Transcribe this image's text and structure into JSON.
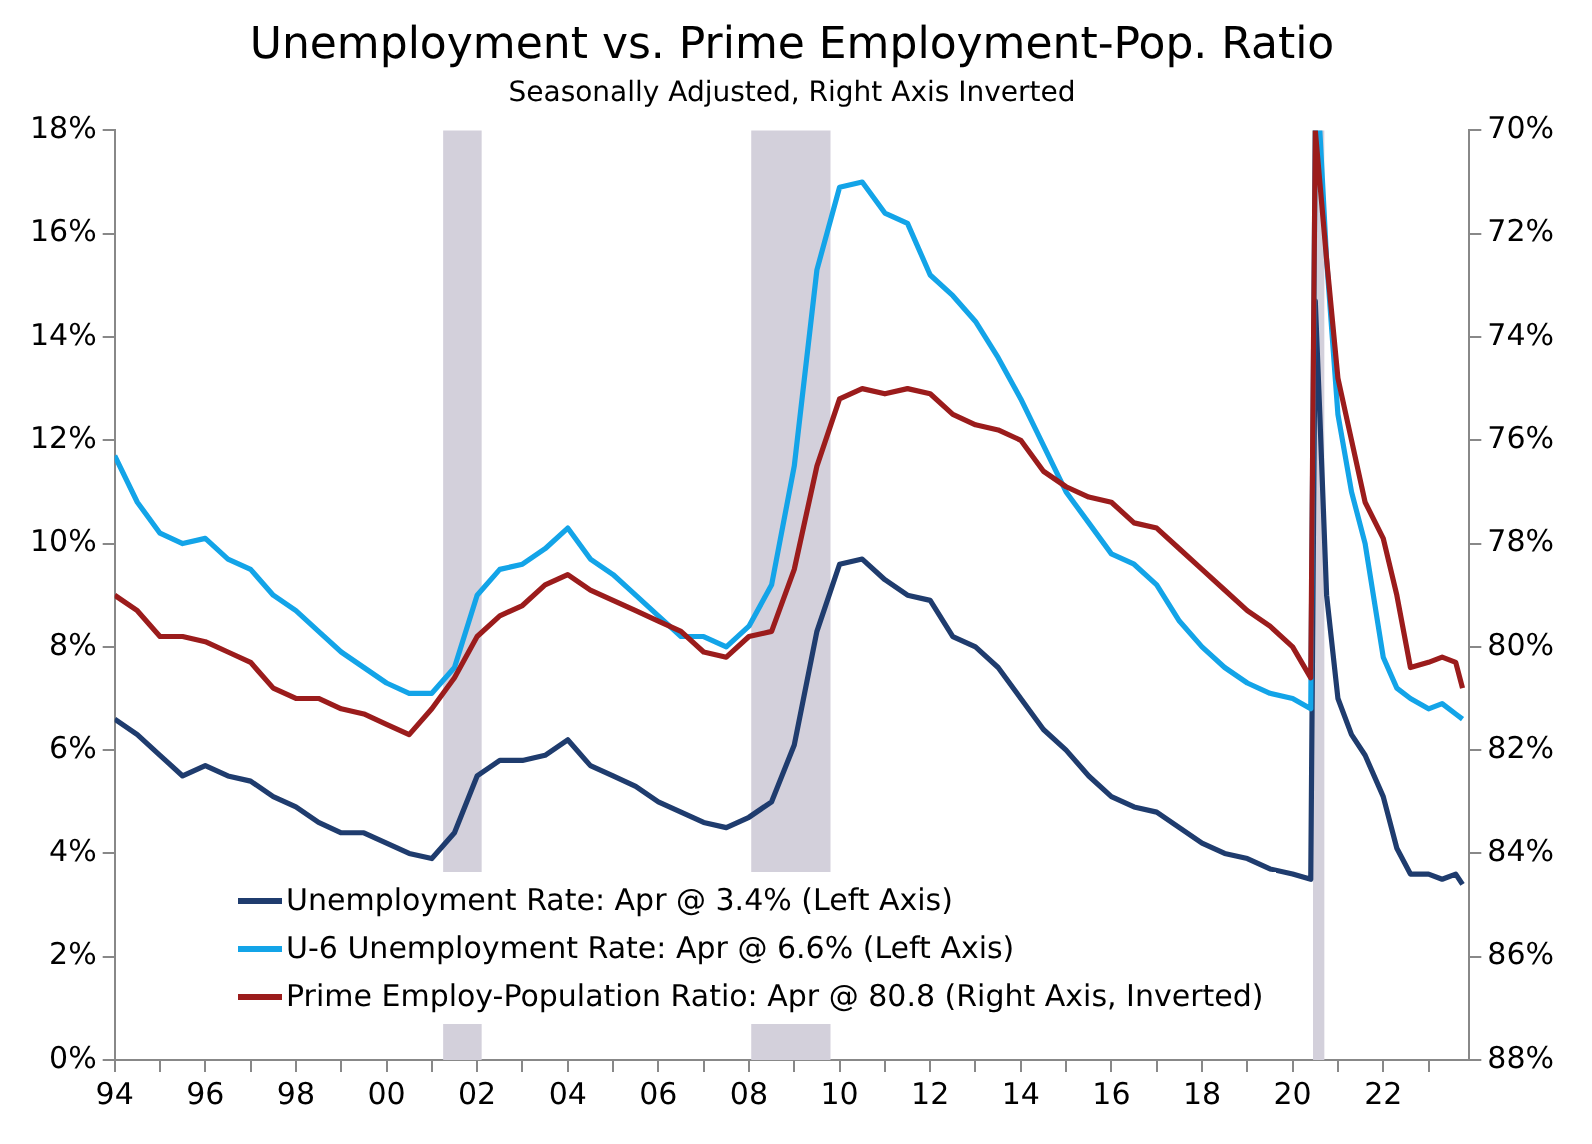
{
  "chart_data": {
    "type": "line",
    "title": "Unemployment vs. Prime Employment-Pop. Ratio",
    "subtitle": "Seasonally Adjusted, Right Axis Inverted",
    "x": [
      1994.0,
      1994.5,
      1995.0,
      1995.5,
      1996.0,
      1996.5,
      1997.0,
      1997.5,
      1998.0,
      1998.5,
      1999.0,
      1999.5,
      2000.0,
      2000.5,
      2001.0,
      2001.5,
      2002.0,
      2002.5,
      2003.0,
      2003.5,
      2004.0,
      2004.5,
      2005.0,
      2005.5,
      2006.0,
      2006.5,
      2007.0,
      2007.5,
      2008.0,
      2008.5,
      2009.0,
      2009.5,
      2010.0,
      2010.5,
      2011.0,
      2011.5,
      2012.0,
      2012.5,
      2013.0,
      2013.5,
      2014.0,
      2014.5,
      2015.0,
      2015.5,
      2016.0,
      2016.5,
      2017.0,
      2017.5,
      2018.0,
      2018.5,
      2019.0,
      2019.5,
      2020.0,
      2020.4,
      2020.5,
      2020.6,
      2020.75,
      2021.0,
      2021.3,
      2021.6,
      2022.0,
      2022.3,
      2022.6,
      2023.0,
      2023.3,
      2023.6,
      2023.75
    ],
    "series": [
      {
        "name": "Unemployment Rate: Apr @ 3.4% (Left Axis)",
        "color": "#1f3c6e",
        "values": [
          6.6,
          6.3,
          5.9,
          5.5,
          5.7,
          5.5,
          5.4,
          5.1,
          4.9,
          4.6,
          4.4,
          4.4,
          4.2,
          4.0,
          3.9,
          4.4,
          5.5,
          5.8,
          5.8,
          5.9,
          6.2,
          5.7,
          5.5,
          5.3,
          5.0,
          4.8,
          4.6,
          4.5,
          4.7,
          5.0,
          6.1,
          8.3,
          9.6,
          9.7,
          9.3,
          9.0,
          8.9,
          8.2,
          8.0,
          7.6,
          7.0,
          6.4,
          6.0,
          5.5,
          5.1,
          4.9,
          4.8,
          4.5,
          4.2,
          4.0,
          3.9,
          3.7,
          3.6,
          3.5,
          14.7,
          12.5,
          9.0,
          7.0,
          6.3,
          5.9,
          5.1,
          4.1,
          3.6,
          3.6,
          3.5,
          3.6,
          3.4
        ]
      },
      {
        "name": "U-6 Unemployment Rate: Apr @ 6.6% (Left Axis)",
        "color": "#13a4e8",
        "values": [
          11.7,
          10.8,
          10.2,
          10.0,
          10.1,
          9.7,
          9.5,
          9.0,
          8.7,
          8.3,
          7.9,
          7.6,
          7.3,
          7.1,
          7.1,
          7.6,
          9.0,
          9.5,
          9.6,
          9.9,
          10.3,
          9.7,
          9.4,
          9.0,
          8.6,
          8.2,
          8.2,
          8.0,
          8.4,
          9.2,
          11.5,
          15.3,
          16.9,
          17.0,
          16.4,
          16.2,
          15.2,
          14.8,
          14.3,
          13.6,
          12.8,
          11.9,
          11.0,
          10.4,
          9.8,
          9.6,
          9.2,
          8.5,
          8.0,
          7.6,
          7.3,
          7.1,
          7.0,
          6.8,
          18,
          18,
          15.5,
          12.5,
          11.0,
          10.0,
          7.8,
          7.2,
          7.0,
          6.8,
          6.9,
          6.7,
          6.6
        ]
      },
      {
        "name": "Prime Employ-Population Ratio: Apr @ 80.8 (Right Axis, Inverted)",
        "color": "#9b1c1c",
        "axis": "y2",
        "values": [
          79.0,
          79.3,
          79.8,
          79.8,
          79.9,
          80.1,
          80.3,
          80.8,
          81.0,
          81.0,
          81.2,
          81.3,
          81.5,
          81.7,
          81.2,
          80.6,
          79.8,
          79.4,
          79.2,
          78.8,
          78.6,
          78.9,
          79.1,
          79.3,
          79.5,
          79.7,
          80.1,
          80.2,
          79.8,
          79.7,
          78.5,
          76.5,
          75.2,
          75.0,
          75.1,
          75.0,
          75.1,
          75.5,
          75.7,
          75.8,
          76.0,
          76.6,
          76.9,
          77.1,
          77.2,
          77.6,
          77.7,
          78.1,
          78.5,
          78.9,
          79.3,
          79.6,
          80.0,
          80.6,
          70,
          71.0,
          72.5,
          74.8,
          76.0,
          77.2,
          77.9,
          79.0,
          80.4,
          80.3,
          80.2,
          80.3,
          80.8
        ]
      }
    ],
    "xlim": [
      1994,
      2023.9
    ],
    "xticks": [
      {
        "value": 1994,
        "label": "94"
      },
      {
        "value": 1995,
        "label": null
      },
      {
        "value": 1996,
        "label": "96"
      },
      {
        "value": 1997,
        "label": null
      },
      {
        "value": 1998,
        "label": "98"
      },
      {
        "value": 1999,
        "label": null
      },
      {
        "value": 2000,
        "label": "00"
      },
      {
        "value": 2001,
        "label": null
      },
      {
        "value": 2002,
        "label": "02"
      },
      {
        "value": 2003,
        "label": null
      },
      {
        "value": 2004,
        "label": "04"
      },
      {
        "value": 2005,
        "label": null
      },
      {
        "value": 2006,
        "label": "06"
      },
      {
        "value": 2007,
        "label": null
      },
      {
        "value": 2008,
        "label": "08"
      },
      {
        "value": 2009,
        "label": null
      },
      {
        "value": 2010,
        "label": "10"
      },
      {
        "value": 2011,
        "label": null
      },
      {
        "value": 2012,
        "label": "12"
      },
      {
        "value": 2013,
        "label": null
      },
      {
        "value": 2014,
        "label": "14"
      },
      {
        "value": 2015,
        "label": null
      },
      {
        "value": 2016,
        "label": "16"
      },
      {
        "value": 2017,
        "label": null
      },
      {
        "value": 2018,
        "label": "18"
      },
      {
        "value": 2019,
        "label": null
      },
      {
        "value": 2020,
        "label": "20"
      },
      {
        "value": 2021,
        "label": null
      },
      {
        "value": 2022,
        "label": "22"
      },
      {
        "value": 2023,
        "label": null
      }
    ],
    "ylim": [
      0,
      18
    ],
    "yticks": [
      {
        "value": 0,
        "label": "0%"
      },
      {
        "value": 2,
        "label": "2%"
      },
      {
        "value": 4,
        "label": "4%"
      },
      {
        "value": 6,
        "label": "6%"
      },
      {
        "value": 8,
        "label": "8%"
      },
      {
        "value": 10,
        "label": "10%"
      },
      {
        "value": 12,
        "label": "12%"
      },
      {
        "value": 14,
        "label": "14%"
      },
      {
        "value": 16,
        "label": "16%"
      },
      {
        "value": 18,
        "label": "18%"
      }
    ],
    "y2lim": [
      88,
      70
    ],
    "y2ticks": [
      {
        "value": 70,
        "label": "70%"
      },
      {
        "value": 72,
        "label": "72%"
      },
      {
        "value": 74,
        "label": "74%"
      },
      {
        "value": 76,
        "label": "76%"
      },
      {
        "value": 78,
        "label": "78%"
      },
      {
        "value": 80,
        "label": "80%"
      },
      {
        "value": 82,
        "label": "82%"
      },
      {
        "value": 84,
        "label": "84%"
      },
      {
        "value": 86,
        "label": "86%"
      },
      {
        "value": 88,
        "label": "88%"
      }
    ],
    "bands": [
      {
        "axis": "x",
        "from": 2001.25,
        "to": 2002.1,
        "color": "#d3d0db"
      },
      {
        "axis": "x",
        "from": 2008.05,
        "to": 2009.8,
        "color": "#d3d0db"
      },
      {
        "axis": "x",
        "from": 2020.45,
        "to": 2020.7,
        "color": "#d3d0db"
      }
    ],
    "grid": false,
    "legend": "bottom left",
    "marker": "none",
    "line_style": "solid"
  }
}
